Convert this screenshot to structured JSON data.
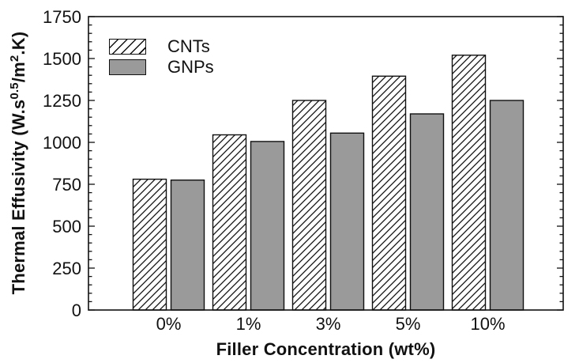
{
  "chart_data": {
    "type": "bar",
    "title": "",
    "categories": [
      "0%",
      "1%",
      "3%",
      "5%",
      "10%"
    ],
    "series": [
      {
        "name": "CNTs",
        "fill": "hatched",
        "hatch": "diagonal-forward",
        "values": [
          780,
          1045,
          1250,
          1395,
          1520
        ]
      },
      {
        "name": "GNPs",
        "fill": "solid",
        "color": "#9a9a9a",
        "values": [
          775,
          1005,
          1055,
          1170,
          1250
        ]
      }
    ],
    "xlabel": "Filler Concentration (wt%)",
    "ylabel": "Thermal Effusivity (W.s^0.5/m^2.K)",
    "ylabel_parts": [
      {
        "t": "Thermal Effusivity (W.s"
      },
      {
        "t": "0.5",
        "sup": true
      },
      {
        "t": "/m"
      },
      {
        "t": "2",
        "sup": true
      },
      {
        "t": ".K)"
      }
    ],
    "ylim": [
      0,
      1750
    ],
    "yticks": [
      0,
      250,
      500,
      750,
      1000,
      1250,
      1500,
      1750
    ],
    "minor_tick_interval": 50,
    "grid": false,
    "legend": {
      "position": "top-left",
      "entries": [
        "CNTs",
        "GNPs"
      ]
    },
    "colors": {
      "axis": "#111111",
      "text": "#111111",
      "hatch": "#111111",
      "gnp_fill": "#9a9a9a",
      "background": "#ffffff"
    }
  }
}
